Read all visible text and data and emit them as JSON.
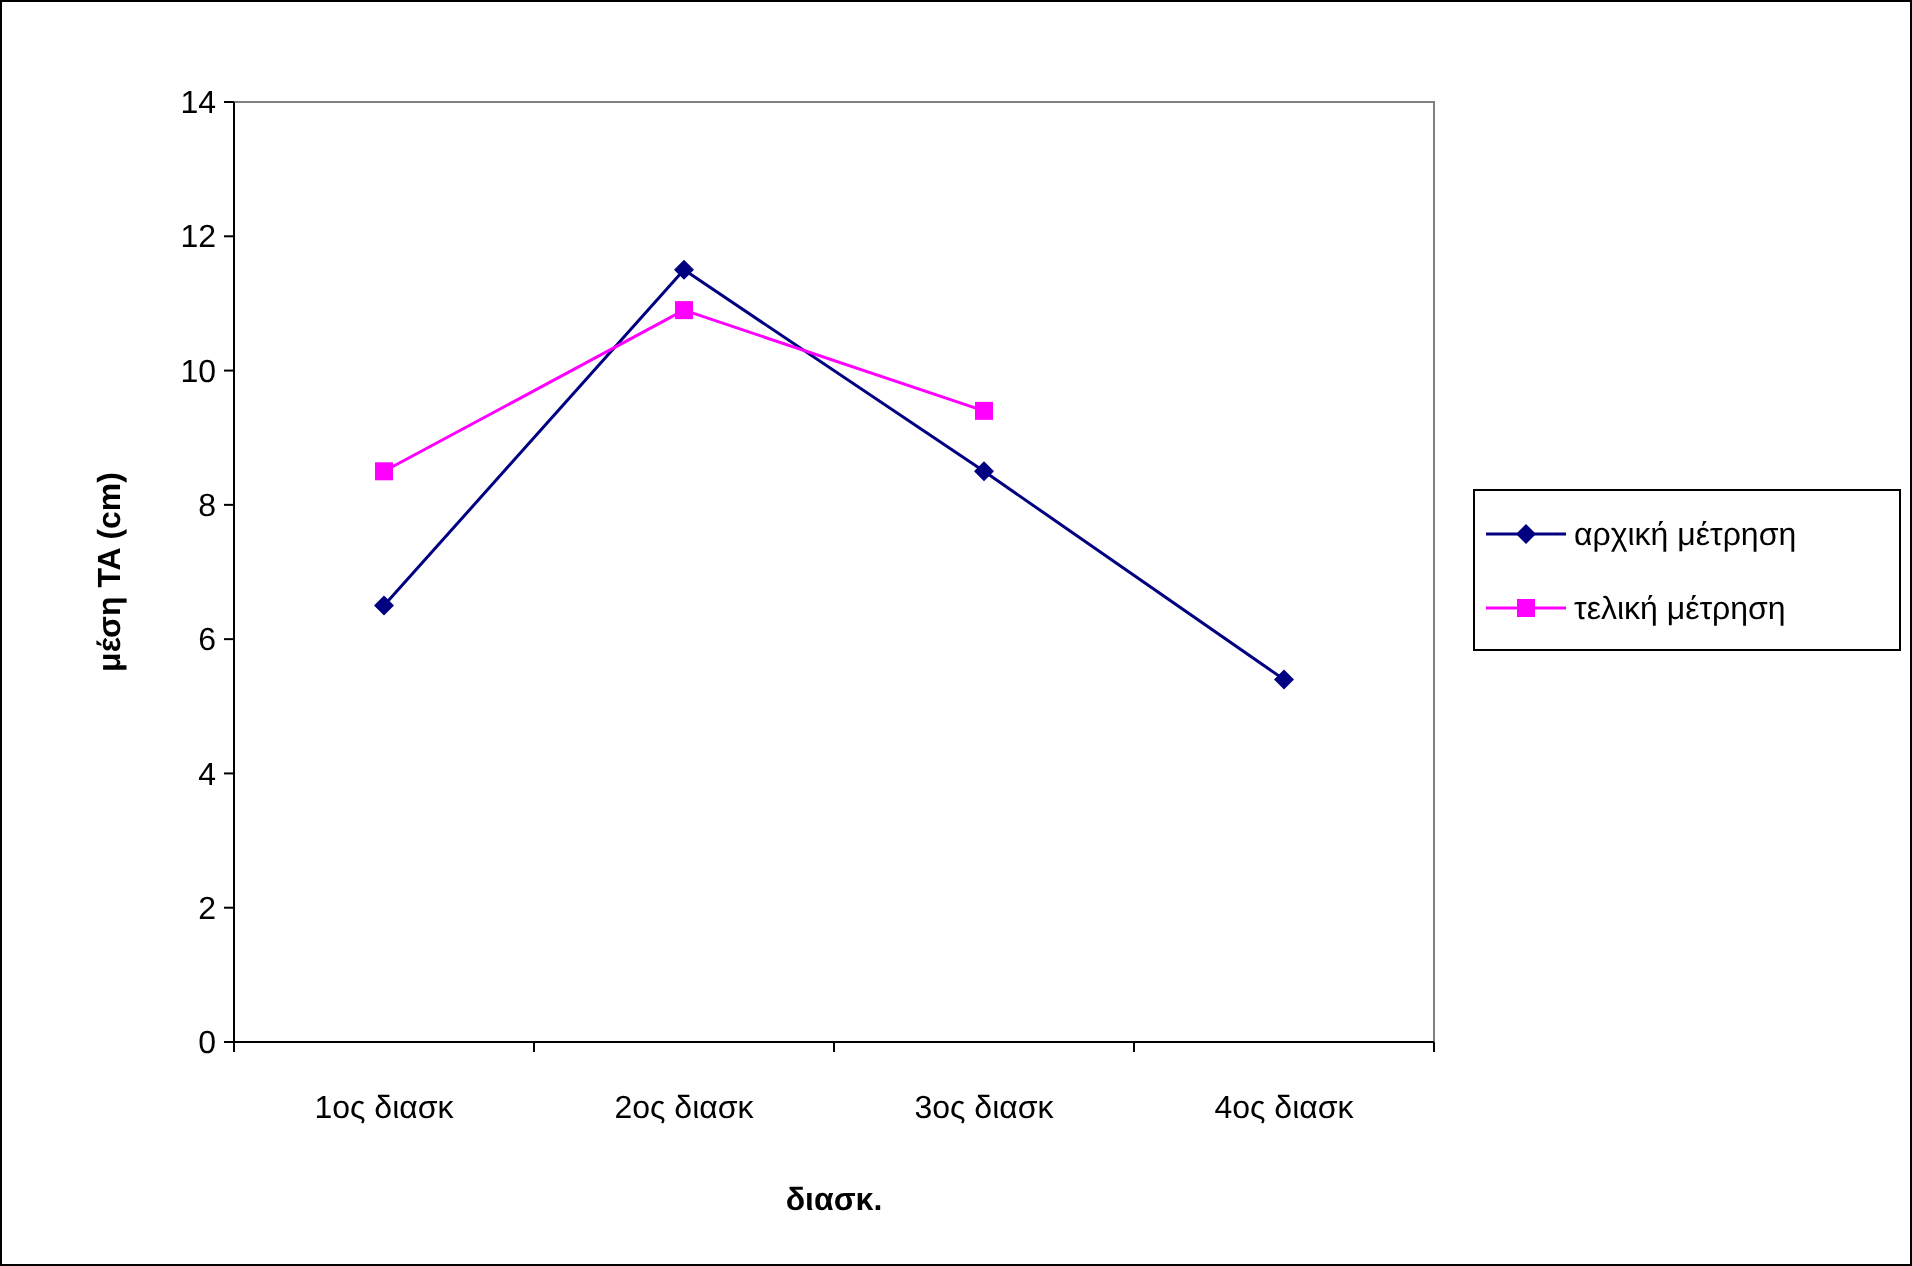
{
  "chart_data": {
    "type": "line",
    "xlabel": "διασκ.",
    "ylabel": "μέση TA (cm)",
    "categories": [
      "1ος διασκ",
      "2ος διασκ",
      "3ος διασκ",
      "4ος διασκ"
    ],
    "series": [
      {
        "name": "αρχική μέτρηση",
        "color": "#000080",
        "values": [
          6.5,
          11.5,
          8.5,
          5.4
        ],
        "marker": "diamond"
      },
      {
        "name": "τελική μέτρηση",
        "color": "#ff00ff",
        "values": [
          8.5,
          10.9,
          9.4,
          null
        ],
        "marker": "square"
      }
    ],
    "ylim": [
      0,
      14
    ],
    "yticks": [
      0,
      2,
      4,
      6,
      8,
      10,
      12,
      14
    ],
    "grid": false,
    "legend": "right",
    "line_style": "solid"
  }
}
